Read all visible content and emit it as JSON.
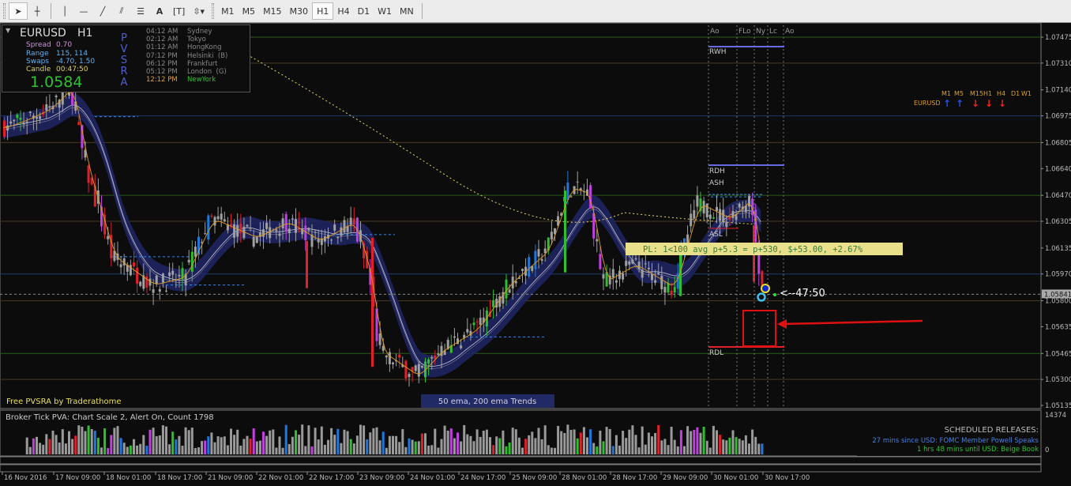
{
  "toolbar": {
    "tools": [
      "cursor",
      "crosshair",
      "vertical-line",
      "horizontal-line",
      "trendline",
      "equidistant-channel",
      "fibonacci",
      "text",
      "text-label",
      "arrows"
    ],
    "timeframes": [
      "M1",
      "M5",
      "M15",
      "M30",
      "H1",
      "H4",
      "D1",
      "W1",
      "MN"
    ],
    "active_timeframe": "H1"
  },
  "panel": {
    "symbol": "EURUSD",
    "timeframe": "H1",
    "spread_label": "Spread",
    "spread": "0.70",
    "range_label": "Range",
    "range": "115, 114",
    "swaps_label": "Swaps",
    "swaps": "-4.70, 1.50",
    "candle_label": "Candle",
    "candle": "00:47:50",
    "price": "1.0584",
    "pvsra": [
      "P",
      "V",
      "S",
      "R",
      "A"
    ],
    "sessions": [
      {
        "time": "04:12 AM",
        "city": "Sydney"
      },
      {
        "time": "02:12 AM",
        "city": "Tokyo"
      },
      {
        "time": "01:12 AM",
        "city": "HongKong"
      },
      {
        "time": "07:12 PM",
        "city": "Helsinki  (B)"
      },
      {
        "time": "06:12 PM",
        "city": "Frankfurt"
      },
      {
        "time": "05:12 PM",
        "city": "London  (G)"
      },
      {
        "time": "12:12 PM",
        "city": "NewYork"
      }
    ]
  },
  "session_markers": [
    "Ao",
    "FLo",
    "Ny",
    "Lc",
    "Ao"
  ],
  "levels": {
    "rwh": "RWH",
    "rdh": "RDH",
    "ash": "ASH",
    "asl": "ASL",
    "rdl": "RDL"
  },
  "trend": {
    "symbol": "EURUSD",
    "timeframes": [
      "M1",
      "M5",
      "M15",
      "H1",
      "H4",
      "D1",
      "W1"
    ],
    "directions": [
      "up",
      "up",
      "down",
      "down",
      "down",
      "none",
      "none"
    ]
  },
  "pl_label": "PL: 1<100 avg p+5.3 = p+530, $+53.00, +2.67%",
  "countdown": "<--47:50",
  "footer_left": "Free PVSRA by Traderathome",
  "footer_center": "50 ema, 200 ema Trends",
  "price_axis": [
    "1.07475",
    "1.07310",
    "1.07140",
    "1.06975",
    "1.06805",
    "1.06640",
    "1.06470",
    "1.06305",
    "1.06135",
    "1.05970",
    "1.05800",
    "1.05635",
    "1.05465",
    "1.05300",
    "1.05135"
  ],
  "current_price": "1.05841",
  "sub": {
    "title": "Broker Tick PVA:   Chart Scale  2,  Alert On,  Count   1798",
    "max": "14374",
    "min": "0",
    "releases_title": "SCHEDULED RELEASES:",
    "release1": "27 mins since USD: FOMC Member Powell Speaks",
    "release2": "1 hrs 48 mins until USD: Beige Book"
  },
  "time_axis": [
    "16 Nov 2016",
    "17 Nov 09:00",
    "18 Nov 01:00",
    "18 Nov 17:00",
    "21 Nov 09:00",
    "22 Nov 01:00",
    "22 Nov 17:00",
    "23 Nov 09:00",
    "24 Nov 01:00",
    "24 Nov 17:00",
    "25 Nov 09:00",
    "28 Nov 01:00",
    "28 Nov 17:00",
    "29 Nov 09:00",
    "30 Nov 01:00",
    "30 Nov 17:00"
  ],
  "colors": {
    "bg": "#0c0c0c",
    "bull": "#2ec02e",
    "bear": "#e0202a",
    "blue": "#1e78e0",
    "magenta": "#c040e0",
    "neutral": "#a0a0a0",
    "ema_band": "#1e2560",
    "ema200": "#e8d860"
  }
}
